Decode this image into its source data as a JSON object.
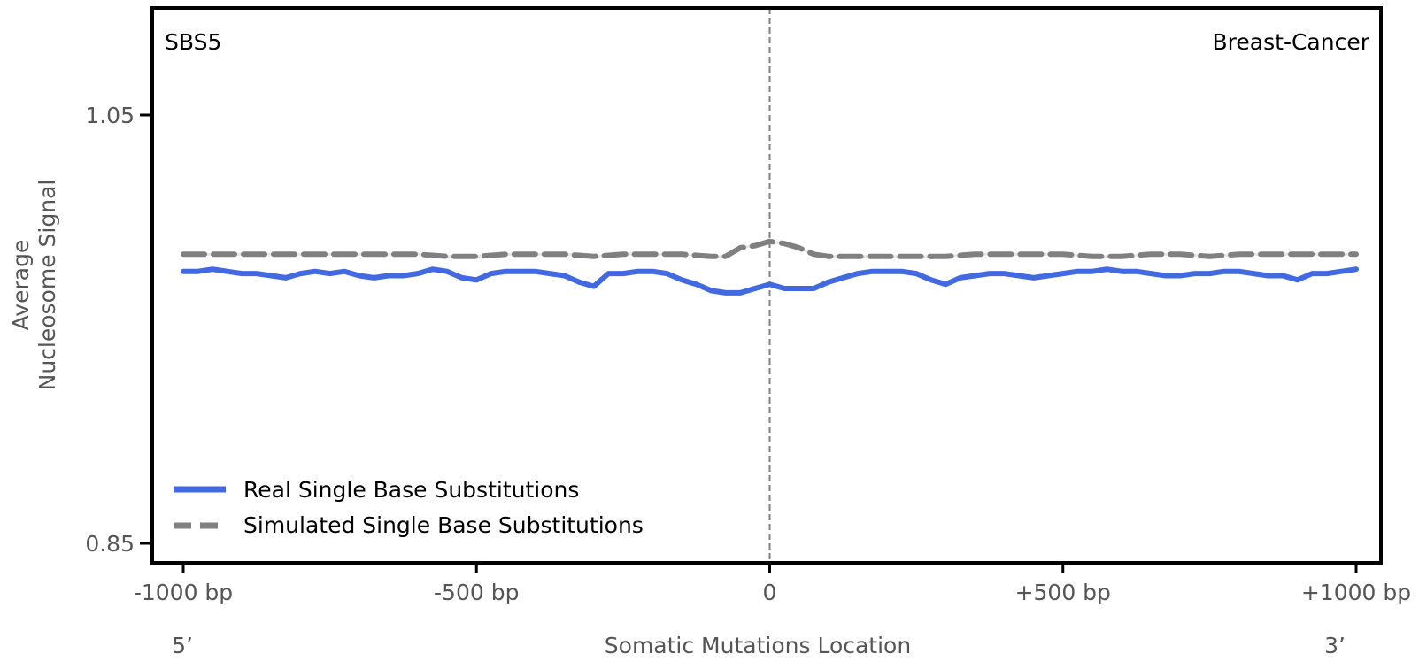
{
  "chart_data": {
    "type": "line",
    "signature_label": "SBS5",
    "cancer_label": "Breast-Cancer",
    "xlabel": "Somatic Mutations Location",
    "ylabel": [
      "Average",
      "Nucleosome Signal"
    ],
    "xlim": [
      -1050,
      1050
    ],
    "ylim": [
      0.84,
      1.1
    ],
    "x_ticks": [
      -1000,
      -500,
      0,
      500,
      1000
    ],
    "x_tick_labels": [
      "-1000 bp",
      "-500 bp",
      "0",
      "+500 bp",
      "+1000 bp"
    ],
    "y_ticks": [
      0.85,
      1.05
    ],
    "y_tick_labels": [
      "0.85",
      "1.05"
    ],
    "end_labels": {
      "left": "5’",
      "right": "3’"
    },
    "center_line_x": 0,
    "grid": false,
    "legend_position": "lower-left",
    "series": [
      {
        "name": "Real Single Base Substitutions",
        "color": "#4169e1",
        "style": "solid",
        "x": [
          -1000,
          -975,
          -950,
          -925,
          -900,
          -875,
          -850,
          -825,
          -800,
          -775,
          -750,
          -725,
          -700,
          -675,
          -650,
          -625,
          -600,
          -575,
          -550,
          -525,
          -500,
          -475,
          -450,
          -425,
          -400,
          -375,
          -350,
          -325,
          -300,
          -275,
          -250,
          -225,
          -200,
          -175,
          -150,
          -125,
          -100,
          -75,
          -50,
          -25,
          0,
          25,
          50,
          75,
          100,
          125,
          150,
          175,
          200,
          225,
          250,
          275,
          300,
          325,
          350,
          375,
          400,
          425,
          450,
          475,
          500,
          525,
          550,
          575,
          600,
          625,
          650,
          675,
          700,
          725,
          750,
          775,
          800,
          825,
          850,
          875,
          900,
          925,
          950,
          975,
          1000
        ],
        "y": [
          0.977,
          0.977,
          0.978,
          0.977,
          0.976,
          0.976,
          0.975,
          0.974,
          0.976,
          0.977,
          0.976,
          0.977,
          0.975,
          0.974,
          0.975,
          0.975,
          0.976,
          0.978,
          0.977,
          0.974,
          0.973,
          0.976,
          0.977,
          0.977,
          0.977,
          0.976,
          0.975,
          0.972,
          0.97,
          0.976,
          0.976,
          0.977,
          0.977,
          0.976,
          0.973,
          0.971,
          0.968,
          0.967,
          0.967,
          0.969,
          0.971,
          0.969,
          0.969,
          0.969,
          0.972,
          0.974,
          0.976,
          0.977,
          0.977,
          0.977,
          0.976,
          0.973,
          0.971,
          0.974,
          0.975,
          0.976,
          0.976,
          0.975,
          0.974,
          0.975,
          0.976,
          0.977,
          0.977,
          0.978,
          0.977,
          0.977,
          0.976,
          0.975,
          0.975,
          0.976,
          0.976,
          0.977,
          0.977,
          0.976,
          0.975,
          0.975,
          0.973,
          0.976,
          0.976,
          0.977,
          0.978
        ]
      },
      {
        "name": "Simulated Single Base Substitutions",
        "color": "#808080",
        "style": "dashed",
        "x": [
          -1000,
          -950,
          -900,
          -850,
          -800,
          -750,
          -700,
          -650,
          -600,
          -550,
          -500,
          -450,
          -400,
          -350,
          -300,
          -250,
          -200,
          -150,
          -100,
          -75,
          -50,
          -25,
          0,
          25,
          50,
          75,
          100,
          150,
          200,
          250,
          300,
          350,
          400,
          450,
          500,
          550,
          600,
          650,
          700,
          750,
          800,
          850,
          900,
          950,
          1000
        ],
        "y": [
          0.985,
          0.985,
          0.985,
          0.985,
          0.985,
          0.985,
          0.985,
          0.985,
          0.985,
          0.984,
          0.984,
          0.985,
          0.985,
          0.985,
          0.984,
          0.985,
          0.985,
          0.985,
          0.984,
          0.984,
          0.988,
          0.989,
          0.991,
          0.99,
          0.988,
          0.985,
          0.984,
          0.984,
          0.984,
          0.984,
          0.984,
          0.985,
          0.985,
          0.985,
          0.985,
          0.984,
          0.984,
          0.985,
          0.985,
          0.984,
          0.985,
          0.985,
          0.985,
          0.985,
          0.985
        ]
      }
    ]
  }
}
